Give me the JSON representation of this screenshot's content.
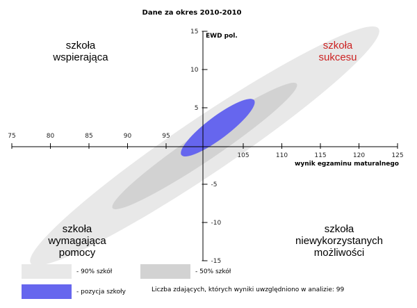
{
  "chart_data": {
    "type": "scatter",
    "title": "Dane za okres 2010-2010",
    "xlabel": "wynik egzaminu maturalnego",
    "ylabel": "EWD pol.",
    "xlim": [
      75,
      125
    ],
    "ylim": [
      -15,
      15
    ],
    "x_origin": 100,
    "y_origin": 0,
    "x_ticks": [
      75,
      80,
      85,
      90,
      95,
      105,
      110,
      115,
      120,
      125
    ],
    "y_ticks": [
      15,
      10,
      5,
      -5,
      -10,
      -15
    ],
    "grid": false,
    "ellipses": [
      {
        "name": "90% szkół",
        "cx": 100,
        "cy": 0,
        "a": 27.2,
        "b": 3.6,
        "angle_deg": 34,
        "color": "#e8e8e8"
      },
      {
        "name": "50% szkół",
        "cx": 100,
        "cy": 0,
        "a": 14.4,
        "b": 1.85,
        "angle_deg": 34,
        "color": "#d2d2d2"
      },
      {
        "name": "pozycja szkoły",
        "cx": 101.7,
        "cy": 2.4,
        "a": 5.9,
        "b": 1.45,
        "angle_deg": 37,
        "color": "#6666ee"
      }
    ],
    "quadrant_labels": [
      {
        "lines": [
          "szkoła",
          "wspierająca"
        ],
        "pos": "top-left",
        "color": "#000000"
      },
      {
        "lines": [
          "szkoła",
          "sukcesu"
        ],
        "pos": "top-right",
        "color": "#cc2222"
      },
      {
        "lines": [
          "szkoła",
          "wymagająca",
          "pomocy"
        ],
        "pos": "bottom-left",
        "color": "#000000"
      },
      {
        "lines": [
          "szkoła",
          "niewykorzystanych",
          "możliwości"
        ],
        "pos": "bottom-right",
        "color": "#000000"
      }
    ],
    "legend": [
      {
        "label": "- 90% szkół",
        "color": "#e8e8e8"
      },
      {
        "label": "- 50% szkół",
        "color": "#d2d2d2"
      },
      {
        "label": "- pozycja szkoły",
        "color": "#6666ee"
      }
    ],
    "note": "Liczba zdających, których wyniki uwzględniono w analizie: 99"
  }
}
